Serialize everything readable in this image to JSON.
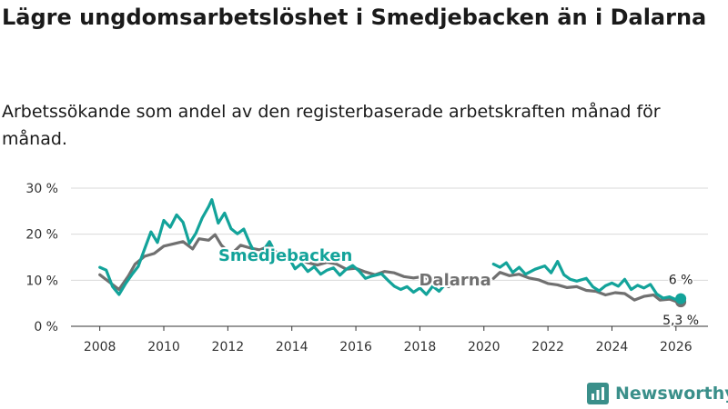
{
  "title": "Lägre ungdomsarbetslöshet i Smedjebacken än i Dalarna",
  "subtitle": "Arbetssökande som andel av den registerbaserade arbetskraften månad för månad.",
  "brand": "Newsworthy",
  "colors": {
    "smedjebacken": "#13a39a",
    "dalarna": "#707070",
    "grid": "#d9d9d9",
    "axis": "#333333",
    "brand": "#3a8f8a"
  },
  "chart_data": {
    "type": "line",
    "title": "Lägre ungdomsarbetslöshet i Smedjebacken än i Dalarna",
    "xlabel": "",
    "ylabel": "",
    "xlim": [
      2007.1,
      2027.0
    ],
    "ylim": [
      0,
      30
    ],
    "x_ticks": [
      2008,
      2010,
      2012,
      2014,
      2016,
      2018,
      2020,
      2022,
      2024,
      2026
    ],
    "x_tick_labels": [
      "2008",
      "2010",
      "2012",
      "2014",
      "2016",
      "2018",
      "2020",
      "2022",
      "2024",
      "2026"
    ],
    "y_ticks": [
      0,
      10,
      20,
      30
    ],
    "y_tick_labels": [
      "0 %",
      "10 %",
      "20 %",
      "30 %"
    ],
    "series": [
      {
        "name": "Dalarna",
        "label_at": [
          2019.1,
          8.9
        ],
        "end_label": "5,3 %",
        "points": [
          [
            2008.0,
            11.2
          ],
          [
            2008.3,
            9.6
          ],
          [
            2008.6,
            8.0
          ],
          [
            2008.9,
            11.0
          ],
          [
            2009.1,
            13.5
          ],
          [
            2009.4,
            15.2
          ],
          [
            2009.7,
            15.8
          ],
          [
            2010.0,
            17.4
          ],
          [
            2010.3,
            17.9
          ],
          [
            2010.6,
            18.4
          ],
          [
            2010.9,
            16.8
          ],
          [
            2011.1,
            19.0
          ],
          [
            2011.4,
            18.7
          ],
          [
            2011.6,
            19.9
          ],
          [
            2011.8,
            17.6
          ],
          [
            2012.1,
            15.6
          ],
          [
            2012.4,
            17.6
          ],
          [
            2012.7,
            17.0
          ],
          [
            2013.0,
            16.6
          ],
          [
            2013.3,
            17.4
          ],
          [
            2013.6,
            15.6
          ],
          [
            2013.9,
            15.1
          ],
          [
            2014.2,
            14.7
          ],
          [
            2014.5,
            13.8
          ],
          [
            2014.8,
            13.3
          ],
          [
            2015.1,
            13.9
          ],
          [
            2015.4,
            13.5
          ],
          [
            2015.7,
            12.4
          ],
          [
            2016.0,
            12.6
          ],
          [
            2016.3,
            11.8
          ],
          [
            2016.6,
            11.2
          ],
          [
            2016.9,
            11.9
          ],
          [
            2017.2,
            11.6
          ],
          [
            2017.5,
            10.8
          ],
          [
            2017.8,
            10.5
          ],
          [
            2018.1,
            10.8
          ],
          [
            2018.4,
            9.8
          ],
          [
            2018.7,
            9.3
          ],
          [
            2018.9,
            8.6
          ],
          [
            2020.3,
            10.4
          ],
          [
            2020.5,
            11.7
          ],
          [
            2020.8,
            11.0
          ],
          [
            2021.1,
            11.3
          ],
          [
            2021.4,
            10.5
          ],
          [
            2021.7,
            10.1
          ],
          [
            2022.0,
            9.3
          ],
          [
            2022.3,
            9.0
          ],
          [
            2022.6,
            8.4
          ],
          [
            2022.9,
            8.6
          ],
          [
            2023.2,
            7.8
          ],
          [
            2023.5,
            7.6
          ],
          [
            2023.8,
            6.8
          ],
          [
            2024.1,
            7.3
          ],
          [
            2024.4,
            7.1
          ],
          [
            2024.7,
            5.7
          ],
          [
            2025.0,
            6.5
          ],
          [
            2025.3,
            6.8
          ],
          [
            2025.5,
            5.7
          ],
          [
            2025.8,
            5.9
          ],
          [
            2026.0,
            5.4
          ],
          [
            2026.15,
            5.3
          ]
        ]
      },
      {
        "name": "Smedjebacken",
        "label_at": [
          2013.8,
          14.2
        ],
        "end_label": "6 %",
        "points": [
          [
            2008.0,
            12.8
          ],
          [
            2008.2,
            12.2
          ],
          [
            2008.4,
            8.6
          ],
          [
            2008.6,
            6.9
          ],
          [
            2008.8,
            9.2
          ],
          [
            2009.0,
            11.2
          ],
          [
            2009.2,
            13.0
          ],
          [
            2009.4,
            16.8
          ],
          [
            2009.6,
            20.5
          ],
          [
            2009.8,
            18.2
          ],
          [
            2010.0,
            23.0
          ],
          [
            2010.2,
            21.5
          ],
          [
            2010.4,
            24.2
          ],
          [
            2010.6,
            22.6
          ],
          [
            2010.8,
            18.0
          ],
          [
            2011.0,
            20.2
          ],
          [
            2011.2,
            23.5
          ],
          [
            2011.4,
            26.0
          ],
          [
            2011.5,
            27.5
          ],
          [
            2011.7,
            22.4
          ],
          [
            2011.9,
            24.6
          ],
          [
            2012.1,
            21.2
          ],
          [
            2012.3,
            20.1
          ],
          [
            2012.5,
            21.1
          ],
          [
            2012.7,
            17.8
          ],
          [
            2012.9,
            15.2
          ],
          [
            2013.1,
            16.4
          ],
          [
            2013.3,
            18.4
          ],
          [
            2013.5,
            15.8
          ],
          [
            2013.7,
            14.8
          ],
          [
            2013.9,
            15.0
          ],
          [
            2014.1,
            12.5
          ],
          [
            2014.3,
            13.6
          ],
          [
            2014.5,
            11.9
          ],
          [
            2014.7,
            12.9
          ],
          [
            2014.9,
            11.3
          ],
          [
            2015.1,
            12.2
          ],
          [
            2015.3,
            12.7
          ],
          [
            2015.5,
            11.1
          ],
          [
            2015.7,
            12.4
          ],
          [
            2015.9,
            13.2
          ],
          [
            2016.1,
            12.0
          ],
          [
            2016.3,
            10.4
          ],
          [
            2016.5,
            10.9
          ],
          [
            2016.8,
            11.4
          ],
          [
            2017.0,
            10.0
          ],
          [
            2017.2,
            8.7
          ],
          [
            2017.4,
            8.0
          ],
          [
            2017.6,
            8.6
          ],
          [
            2017.8,
            7.4
          ],
          [
            2018.0,
            8.3
          ],
          [
            2018.2,
            6.9
          ],
          [
            2018.4,
            8.7
          ],
          [
            2018.6,
            7.6
          ],
          [
            2018.9,
            10.0
          ],
          [
            2020.3,
            13.5
          ],
          [
            2020.5,
            12.8
          ],
          [
            2020.7,
            13.8
          ],
          [
            2020.9,
            11.7
          ],
          [
            2021.1,
            12.8
          ],
          [
            2021.3,
            11.3
          ],
          [
            2021.6,
            12.4
          ],
          [
            2021.9,
            13.1
          ],
          [
            2022.1,
            11.6
          ],
          [
            2022.3,
            14.1
          ],
          [
            2022.5,
            11.2
          ],
          [
            2022.7,
            10.2
          ],
          [
            2022.9,
            9.8
          ],
          [
            2023.2,
            10.4
          ],
          [
            2023.4,
            8.6
          ],
          [
            2023.6,
            7.7
          ],
          [
            2023.8,
            8.8
          ],
          [
            2024.0,
            9.4
          ],
          [
            2024.2,
            8.7
          ],
          [
            2024.4,
            10.2
          ],
          [
            2024.6,
            8.0
          ],
          [
            2024.8,
            8.9
          ],
          [
            2025.0,
            8.3
          ],
          [
            2025.2,
            9.1
          ],
          [
            2025.4,
            7.0
          ],
          [
            2025.6,
            6.1
          ],
          [
            2025.8,
            6.4
          ],
          [
            2026.0,
            5.8
          ],
          [
            2026.15,
            6.0
          ]
        ]
      }
    ]
  }
}
